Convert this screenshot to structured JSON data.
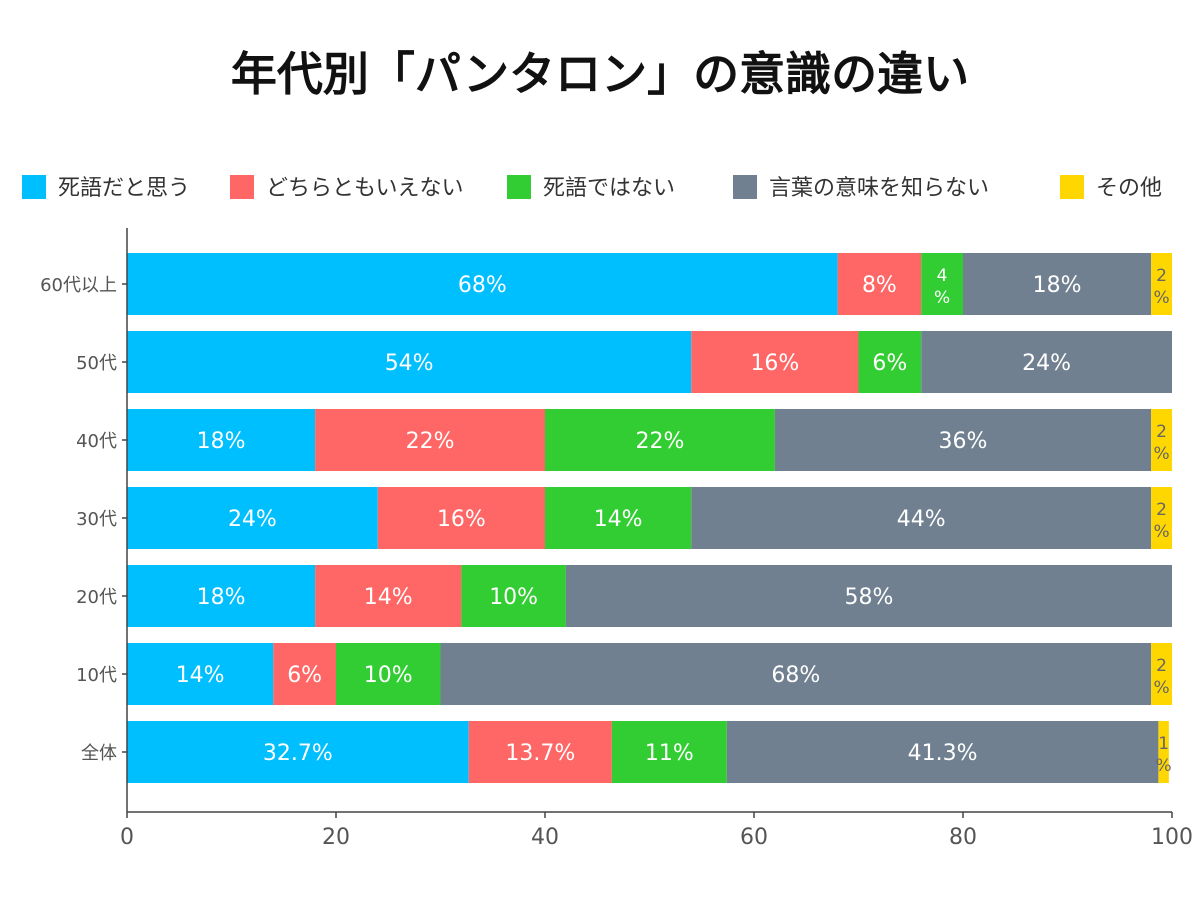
{
  "chart_data": {
    "type": "bar",
    "orientation": "horizontal",
    "stacked": true,
    "title": "年代別「パンタロン」の意識の違い",
    "legend_position": "top",
    "categories": [
      "60代以上",
      "50代",
      "40代",
      "30代",
      "20代",
      "10代",
      "全体"
    ],
    "series": [
      {
        "name": "死語だと思う",
        "color": "#00BFFF",
        "values": [
          68,
          54,
          18,
          24,
          18,
          14,
          32.7
        ],
        "labels": [
          "68%",
          "54%",
          "18%",
          "24%",
          "18%",
          "14%",
          "32.7%"
        ]
      },
      {
        "name": "どちらともいえない",
        "color": "#FF6666",
        "values": [
          8,
          16,
          22,
          16,
          14,
          6,
          13.7
        ],
        "labels": [
          "8%",
          "16%",
          "22%",
          "16%",
          "14%",
          "6%",
          "13.7%"
        ]
      },
      {
        "name": "死語ではない",
        "color": "#32CD32",
        "values": [
          4,
          6,
          22,
          14,
          10,
          10,
          11
        ],
        "labels": [
          "4%",
          "6%",
          "22%",
          "14%",
          "10%",
          "10%",
          "11%"
        ]
      },
      {
        "name": "言葉の意味を知らない",
        "color": "#708090",
        "values": [
          18,
          24,
          36,
          44,
          58,
          68,
          41.3
        ],
        "labels": [
          "18%",
          "24%",
          "36%",
          "44%",
          "58%",
          "68%",
          "41.3%"
        ]
      },
      {
        "name": "その他",
        "color": "#FFD700",
        "values": [
          2,
          0,
          2,
          2,
          0,
          2,
          1
        ],
        "labels": [
          "2%",
          "",
          "2%",
          "2%",
          "",
          "2%",
          "1%"
        ]
      }
    ],
    "xlim": [
      0,
      100
    ],
    "xticks": [
      "0",
      "20",
      "40",
      "60",
      "80",
      "100"
    ],
    "grid": false
  }
}
